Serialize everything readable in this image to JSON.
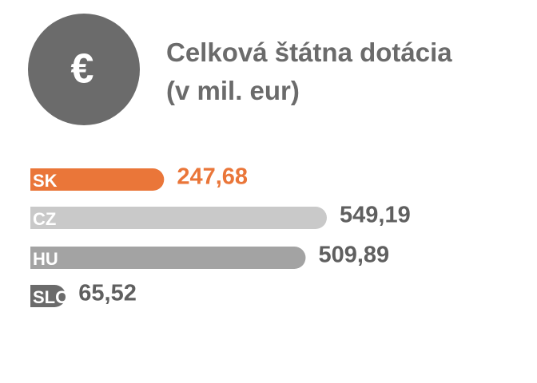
{
  "chart_data": {
    "type": "bar",
    "orientation": "horizontal",
    "icon_label": "€",
    "title": "Celková štátna dotácia (v mil. eur)",
    "categories": [
      "SK",
      "CZ",
      "HU",
      "SLO"
    ],
    "values": [
      247.68,
      549.19,
      509.89,
      65.52
    ],
    "value_labels": [
      "247,68",
      "549,19",
      "509,89",
      "65,52"
    ],
    "colors": [
      "#ea7639",
      "#c9c9c9",
      "#a3a3a3",
      "#6b6b6b"
    ],
    "value_label_colors": [
      "#ea7639",
      "#5f5f5f",
      "#5f5f5f",
      "#5f5f5f"
    ]
  }
}
